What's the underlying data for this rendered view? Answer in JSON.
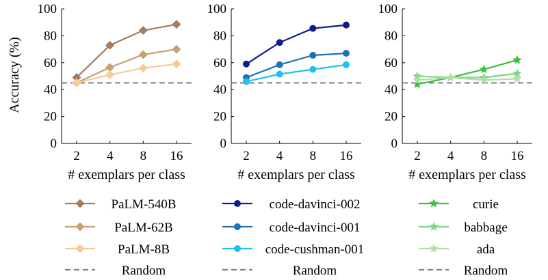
{
  "chart_data": [
    {
      "type": "line",
      "x": [
        2,
        4,
        8,
        16
      ],
      "x_scale": "log2",
      "xlabel": "# exemplars per class",
      "ylabel": "Accuracy (%)",
      "ylim": [
        0,
        100
      ],
      "yticks": [
        0,
        20,
        40,
        60,
        80,
        100
      ],
      "series": [
        {
          "name": "PaLM-540B",
          "values": [
            49,
            73,
            84,
            88.5
          ],
          "color": "#a67c5b",
          "marker": "diamond"
        },
        {
          "name": "PaLM-62B",
          "values": [
            45,
            56.5,
            66,
            70
          ],
          "color": "#c9a071",
          "marker": "diamond"
        },
        {
          "name": "PaLM-8B",
          "values": [
            45,
            51,
            56,
            59
          ],
          "color": "#f7c99b",
          "marker": "diamond"
        }
      ],
      "baseline": {
        "name": "Random",
        "value": 45,
        "color": "#808080",
        "style": "dashed"
      }
    },
    {
      "type": "line",
      "x": [
        2,
        4,
        8,
        16
      ],
      "x_scale": "log2",
      "xlabel": "# exemplars per class",
      "ylabel": "",
      "ylim": [
        0,
        100
      ],
      "yticks": [
        0,
        20,
        40,
        60,
        80,
        100
      ],
      "series": [
        {
          "name": "code-davinci-002",
          "values": [
            59,
            75,
            85.5,
            88
          ],
          "color": "#0d1b8c",
          "marker": "circle"
        },
        {
          "name": "code-davinci-001",
          "values": [
            49,
            58.5,
            65.5,
            67
          ],
          "color": "#1a73b8",
          "marker": "circle"
        },
        {
          "name": "code-cushman-001",
          "values": [
            46,
            51.5,
            55,
            58.5
          ],
          "color": "#1ec0f2",
          "marker": "circle"
        }
      ],
      "baseline": {
        "name": "Random",
        "value": 45,
        "color": "#808080",
        "style": "dashed"
      }
    },
    {
      "type": "line",
      "x": [
        2,
        4,
        8,
        16
      ],
      "x_scale": "log2",
      "xlabel": "# exemplars per class",
      "ylabel": "",
      "ylim": [
        0,
        100
      ],
      "yticks": [
        0,
        20,
        40,
        60,
        80,
        100
      ],
      "series": [
        {
          "name": "curie",
          "values": [
            44,
            49,
            55,
            62
          ],
          "color": "#3bbf3b",
          "marker": "star"
        },
        {
          "name": "babbage",
          "values": [
            50,
            49,
            49,
            52
          ],
          "color": "#7fd67f",
          "marker": "star"
        },
        {
          "name": "ada",
          "values": [
            47,
            49,
            47,
            48
          ],
          "color": "#b0e0a8",
          "marker": "star"
        }
      ],
      "baseline": {
        "name": "Random",
        "value": 45,
        "color": "#808080",
        "style": "dashed"
      }
    }
  ],
  "legend": {
    "placement": "bottom",
    "columns": [
      [
        "PaLM-540B",
        "PaLM-62B",
        "PaLM-8B",
        "Random"
      ],
      [
        "code-davinci-002",
        "code-davinci-001",
        "code-cushman-001",
        "Random"
      ],
      [
        "curie",
        "babbage",
        "ada",
        "Random"
      ]
    ]
  }
}
